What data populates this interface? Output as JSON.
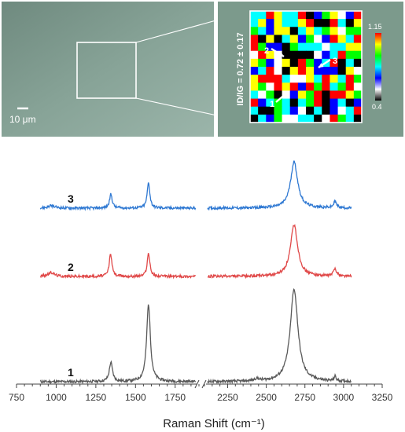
{
  "optical_image": {
    "scale_bar_label": "10 μm"
  },
  "raman_map": {
    "side_label": "ID/IG = 0.72 ± 0.17",
    "colorbar_max_label": "1.15",
    "colorbar_min_label": "0.4",
    "points": [
      {
        "label": "1"
      },
      {
        "label": "2"
      },
      {
        "label": "3"
      }
    ],
    "colorbar_colors": [
      "#ff0000",
      "#ffff00",
      "#00ff00",
      "#00ffff",
      "#0000ff",
      "#ffffff",
      "#000000"
    ]
  },
  "chart_data": {
    "type": "line",
    "title": "",
    "xlabel": "Raman Shift (cm⁻¹)",
    "ylabel": "",
    "xlim": [
      750,
      3250
    ],
    "x_ticks": [
      "750",
      "1000",
      "1250",
      "1500",
      "1750",
      "2250",
      "2500",
      "2750",
      "3000",
      "3250"
    ],
    "axis_break_between": [
      1900,
      2100
    ],
    "grid": false,
    "series": [
      {
        "name": "1",
        "color": "#595959",
        "x_range": [
          900,
          3050
        ],
        "peaks": [
          {
            "x": 1345,
            "height": 0.25,
            "width": 12
          },
          {
            "x": 1582,
            "height": 1.0,
            "width": 14
          },
          {
            "x": 2440,
            "height": 0.03,
            "width": 20
          },
          {
            "x": 2680,
            "height": 1.2,
            "width": 30
          },
          {
            "x": 2945,
            "height": 0.06,
            "width": 8
          }
        ]
      },
      {
        "name": "2",
        "color": "#e04848",
        "x_range": [
          900,
          3050
        ],
        "peaks": [
          {
            "x": 970,
            "height": 0.05,
            "width": 25
          },
          {
            "x": 1343,
            "height": 0.3,
            "width": 10
          },
          {
            "x": 1582,
            "height": 0.3,
            "width": 10
          },
          {
            "x": 2680,
            "height": 0.67,
            "width": 28
          },
          {
            "x": 2945,
            "height": 0.1,
            "width": 12
          }
        ]
      },
      {
        "name": "3",
        "color": "#2e78d2",
        "x_range": [
          900,
          3050
        ],
        "peaks": [
          {
            "x": 970,
            "height": 0.03,
            "width": 25
          },
          {
            "x": 1345,
            "height": 0.18,
            "width": 10
          },
          {
            "x": 1582,
            "height": 0.33,
            "width": 10
          },
          {
            "x": 2680,
            "height": 0.6,
            "width": 28
          },
          {
            "x": 2945,
            "height": 0.08,
            "width": 12
          }
        ]
      }
    ]
  }
}
